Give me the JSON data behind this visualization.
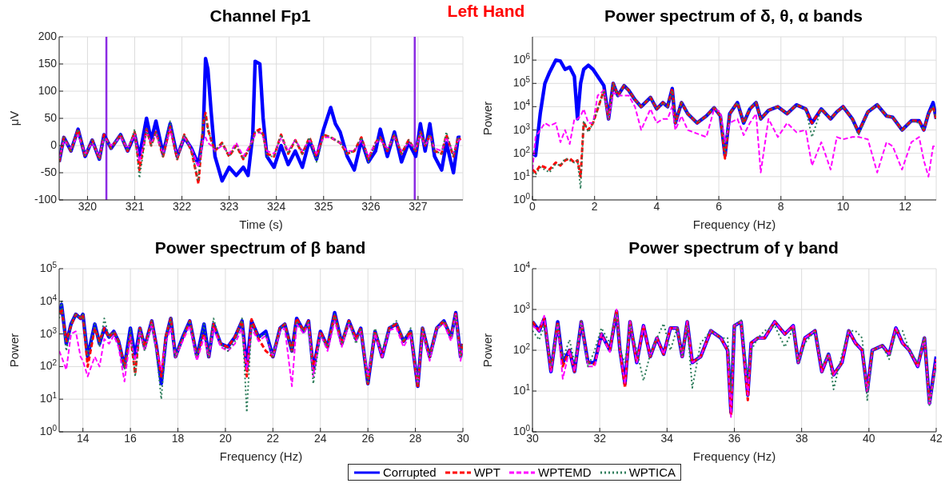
{
  "chart_data": [
    {
      "type": "line",
      "title": "Channel Fp1",
      "xlabel": "Time (s)",
      "ylabel": "μV",
      "annotations": [
        "Left Hand"
      ],
      "grid": true,
      "marker": "none",
      "xlim": [
        319.4,
        327.95
      ],
      "xticks": [
        320,
        321,
        322,
        323,
        324,
        325,
        326,
        327
      ],
      "ylim": [
        -100,
        200
      ],
      "yticks": [
        -100,
        -50,
        0,
        50,
        100,
        150,
        200
      ],
      "ref_lines": [
        {
          "axis": "x",
          "value": 320.4,
          "color": "#8b2be2"
        },
        {
          "axis": "x",
          "value": 326.93,
          "color": "#8b2be2"
        }
      ],
      "x": [
        319.4,
        319.5,
        319.65,
        319.8,
        319.95,
        320.1,
        320.25,
        320.35,
        320.5,
        320.7,
        320.85,
        321.0,
        321.1,
        321.25,
        321.35,
        321.45,
        321.6,
        321.75,
        321.9,
        322.05,
        322.2,
        322.35,
        322.45,
        322.5,
        322.55,
        322.62,
        322.7,
        322.85,
        323.0,
        323.15,
        323.3,
        323.4,
        323.5,
        323.55,
        323.65,
        323.72,
        323.8,
        323.95,
        324.1,
        324.25,
        324.4,
        324.55,
        324.7,
        324.85,
        325.0,
        325.15,
        325.25,
        325.35,
        325.5,
        325.65,
        325.8,
        325.95,
        326.1,
        326.2,
        326.35,
        326.5,
        326.65,
        326.8,
        326.95,
        327.05,
        327.15,
        327.25,
        327.35,
        327.5,
        327.6,
        327.75,
        327.85,
        327.9
      ],
      "series": [
        {
          "color": "#0000ff",
          "line_style": "solid",
          "values": [
            -30,
            15,
            -10,
            30,
            -20,
            10,
            -25,
            20,
            -5,
            20,
            -10,
            20,
            -20,
            50,
            10,
            45,
            -15,
            40,
            -20,
            15,
            -5,
            -35,
            20,
            160,
            140,
            60,
            -20,
            -65,
            -40,
            -55,
            -40,
            -55,
            20,
            155,
            150,
            50,
            -20,
            -40,
            0,
            -35,
            -10,
            -40,
            10,
            -25,
            30,
            70,
            40,
            25,
            -20,
            -45,
            10,
            -30,
            -10,
            30,
            -20,
            25,
            -30,
            5,
            -20,
            40,
            -10,
            40,
            -20,
            -45,
            5,
            -50,
            15,
            15
          ]
        },
        {
          "color": "#ff0000",
          "line_style": "dashed",
          "values": [
            -30,
            15,
            -10,
            30,
            -20,
            10,
            -25,
            20,
            -5,
            20,
            -10,
            25,
            -45,
            30,
            0,
            25,
            -20,
            35,
            -25,
            20,
            -10,
            -70,
            40,
            60,
            30,
            10,
            -10,
            5,
            -20,
            0,
            -25,
            -10,
            10,
            25,
            30,
            20,
            -15,
            -20,
            20,
            -15,
            10,
            -15,
            15,
            -20,
            20,
            15,
            10,
            5,
            -15,
            -10,
            15,
            -25,
            5,
            15,
            -10,
            20,
            -15,
            10,
            -10,
            25,
            0,
            20,
            -10,
            -15,
            20,
            -20,
            15,
            10
          ]
        },
        {
          "color": "#ff00ff",
          "line_style": "dashed",
          "values": [
            -25,
            10,
            -5,
            20,
            -15,
            5,
            -20,
            15,
            0,
            15,
            -5,
            20,
            -30,
            25,
            5,
            20,
            -15,
            30,
            -20,
            15,
            -5,
            -40,
            10,
            15,
            5,
            0,
            -10,
            0,
            -15,
            5,
            -20,
            -5,
            10,
            20,
            25,
            15,
            -10,
            -15,
            15,
            -10,
            10,
            -10,
            10,
            -15,
            15,
            15,
            10,
            5,
            -10,
            -10,
            10,
            -20,
            5,
            10,
            -5,
            15,
            -10,
            5,
            -5,
            20,
            0,
            15,
            -5,
            -10,
            15,
            -15,
            10,
            10
          ]
        },
        {
          "color": "#2e7d5b",
          "line_style": "dotted",
          "values": [
            -30,
            15,
            -10,
            30,
            -20,
            10,
            -25,
            15,
            -5,
            20,
            -10,
            30,
            -60,
            30,
            0,
            25,
            -20,
            45,
            -25,
            20,
            -10,
            -65,
            45,
            55,
            30,
            10,
            -10,
            5,
            -20,
            0,
            -25,
            -10,
            10,
            25,
            25,
            20,
            -20,
            -20,
            20,
            -15,
            10,
            -15,
            15,
            -30,
            20,
            15,
            10,
            5,
            -15,
            -10,
            15,
            -30,
            5,
            15,
            -10,
            20,
            -15,
            10,
            -10,
            25,
            0,
            20,
            -10,
            -15,
            25,
            -20,
            15,
            10
          ]
        }
      ]
    },
    {
      "type": "line",
      "title": "Power spectrum of δ, θ, α bands",
      "xlabel": "Frequency (Hz)",
      "ylabel": "Power",
      "log": "y",
      "grid": true,
      "marker": "none",
      "xlim": [
        0,
        13
      ],
      "xticks": [
        0,
        2,
        4,
        6,
        8,
        10,
        12
      ],
      "ylim": [
        1,
        10000000
      ],
      "yticks": [
        {
          "value": 1,
          "label": "10$^{0}$"
        },
        {
          "value": 10,
          "label": "10$^{1}$"
        },
        {
          "value": 100,
          "label": "10$^{2}$"
        },
        {
          "value": 1000,
          "label": "10$^{3}$"
        },
        {
          "value": 10000,
          "label": "10$^{4}$"
        },
        {
          "value": 100000,
          "label": "10$^{5}$"
        },
        {
          "value": 1000000,
          "label": "10$^{6}$"
        }
      ],
      "x": [
        0,
        0.1,
        0.25,
        0.4,
        0.55,
        0.75,
        0.9,
        1.05,
        1.2,
        1.35,
        1.45,
        1.55,
        1.65,
        1.8,
        1.95,
        2.1,
        2.3,
        2.45,
        2.6,
        2.75,
        2.95,
        3.1,
        3.3,
        3.5,
        3.8,
        4.0,
        4.2,
        4.35,
        4.5,
        4.6,
        4.8,
        5.0,
        5.3,
        5.6,
        5.85,
        6.05,
        6.2,
        6.35,
        6.6,
        6.8,
        7.0,
        7.2,
        7.35,
        7.6,
        7.9,
        8.2,
        8.5,
        8.8,
        9.0,
        9.3,
        9.6,
        9.8,
        10.0,
        10.3,
        10.5,
        10.8,
        11.1,
        11.4,
        11.6,
        11.9,
        12.2,
        12.45,
        12.6,
        12.75,
        12.9,
        13.0
      ],
      "series": [
        {
          "color": "#0000ff",
          "line_style": "solid",
          "values": [
            100,
            80,
            5000,
            100000,
            300000,
            1000000,
            900000,
            400000,
            500000,
            200000,
            3000,
            100000,
            400000,
            600000,
            400000,
            200000,
            80000,
            3000,
            100000,
            30000,
            80000,
            50000,
            20000,
            10000,
            25000,
            8000,
            15000,
            10000,
            60000,
            2000,
            15000,
            5000,
            2000,
            4000,
            9000,
            4000,
            80,
            5000,
            15000,
            2000,
            8000,
            15000,
            3000,
            7000,
            10000,
            5000,
            12000,
            8000,
            2000,
            8000,
            3000,
            6000,
            10000,
            3000,
            800,
            6000,
            12000,
            4000,
            3500,
            1000,
            2500,
            2500,
            1000,
            5000,
            15000,
            3000
          ]
        },
        {
          "color": "#ff0000",
          "line_style": "dashed",
          "values": [
            20,
            15,
            30,
            25,
            20,
            40,
            30,
            50,
            60,
            40,
            50,
            10,
            2000,
            1000,
            2000,
            8000,
            50000,
            3000,
            100000,
            30000,
            80000,
            50000,
            20000,
            10000,
            25000,
            8000,
            15000,
            10000,
            60000,
            2000,
            15000,
            5000,
            2000,
            4000,
            9000,
            4000,
            60,
            5000,
            15000,
            2000,
            8000,
            15000,
            3000,
            7000,
            10000,
            5000,
            12000,
            8000,
            2000,
            8000,
            3000,
            6000,
            10000,
            3000,
            800,
            6000,
            12000,
            4000,
            3500,
            1000,
            2500,
            2500,
            1000,
            5000,
            10000,
            3000
          ]
        },
        {
          "color": "#ff00ff",
          "line_style": "dashed",
          "values": [
            20,
            500,
            1000,
            2000,
            1500,
            2000,
            300,
            1000,
            250,
            3000,
            3000,
            4000,
            8000,
            2000,
            2000,
            30000,
            50000,
            3000,
            40000,
            30000,
            30000,
            30000,
            10000,
            1000,
            8000,
            2000,
            3000,
            3000,
            10000,
            1000,
            4000,
            1000,
            700,
            500,
            8000,
            6000,
            300,
            2000,
            3000,
            600,
            2000,
            5000,
            15,
            3000,
            500,
            2000,
            800,
            1000,
            30,
            300,
            20,
            500,
            400,
            500,
            500,
            400,
            15,
            300,
            200,
            20,
            300,
            500,
            50,
            10,
            200,
            200
          ]
        },
        {
          "color": "#2e7d5b",
          "line_style": "dotted",
          "values": [
            15,
            12,
            25,
            20,
            15,
            35,
            30,
            60,
            50,
            40,
            50,
            3,
            2500,
            800,
            2000,
            8000,
            50000,
            3000,
            100000,
            30000,
            80000,
            50000,
            20000,
            10000,
            25000,
            8000,
            15000,
            10000,
            50000,
            2000,
            15000,
            5000,
            2000,
            4000,
            9000,
            4000,
            100,
            5000,
            15000,
            2000,
            9000,
            15000,
            3000,
            7000,
            10000,
            5000,
            12000,
            8000,
            500,
            8000,
            3000,
            6000,
            10000,
            3000,
            600,
            6000,
            12000,
            4000,
            3500,
            1000,
            2500,
            2000,
            1000,
            5000,
            10000,
            3000
          ]
        }
      ]
    },
    {
      "type": "line",
      "title": "Power spectrum of β band",
      "xlabel": "Frequency (Hz)",
      "ylabel": "Power",
      "log": "y",
      "grid": true,
      "marker": "none",
      "xlim": [
        13,
        30
      ],
      "xticks": [
        14,
        16,
        18,
        20,
        22,
        24,
        26,
        28,
        30
      ],
      "ylim": [
        1,
        100000
      ],
      "yticks": [
        {
          "value": 1,
          "label": "10$^{0}$"
        },
        {
          "value": 10,
          "label": "10$^{1}$"
        },
        {
          "value": 100,
          "label": "10$^{2}$"
        },
        {
          "value": 1000,
          "label": "10$^{3}$"
        },
        {
          "value": 10000,
          "label": "10$^{4}$"
        },
        {
          "value": 100000,
          "label": "10$^{5}$"
        }
      ],
      "x": [
        13.0,
        13.1,
        13.3,
        13.5,
        13.7,
        13.9,
        14.0,
        14.2,
        14.5,
        14.7,
        14.9,
        15.1,
        15.3,
        15.5,
        15.75,
        16.0,
        16.2,
        16.4,
        16.6,
        16.9,
        17.1,
        17.3,
        17.5,
        17.7,
        17.9,
        18.2,
        18.5,
        18.8,
        19.1,
        19.3,
        19.5,
        19.8,
        20.1,
        20.4,
        20.7,
        20.9,
        21.1,
        21.4,
        21.7,
        22.0,
        22.3,
        22.5,
        22.8,
        23.0,
        23.3,
        23.5,
        23.7,
        24.0,
        24.3,
        24.6,
        24.9,
        25.2,
        25.5,
        25.7,
        26.0,
        26.3,
        26.6,
        26.9,
        27.2,
        27.5,
        27.8,
        28.1,
        28.3,
        28.6,
        28.9,
        29.2,
        29.5,
        29.7,
        29.9,
        30.0
      ],
      "series": [
        {
          "color": "#0000ff",
          "line_style": "solid",
          "values": [
            4000,
            8000,
            500,
            2000,
            4000,
            3000,
            4000,
            200,
            2000,
            500,
            1500,
            800,
            1200,
            600,
            100,
            1500,
            200,
            1500,
            400,
            2500,
            400,
            30,
            800,
            3000,
            200,
            800,
            2500,
            200,
            2000,
            200,
            2000,
            500,
            400,
            800,
            2500,
            100,
            2500,
            800,
            1200,
            200,
            1500,
            2000,
            300,
            3000,
            1200,
            2500,
            80,
            1200,
            400,
            4500,
            500,
            2500,
            700,
            1500,
            30,
            1200,
            200,
            1500,
            2000,
            600,
            1200,
            25,
            1500,
            200,
            1500,
            2500,
            800,
            4500,
            200,
            500
          ]
        },
        {
          "color": "#ff0000",
          "line_style": "dashed",
          "values": [
            4000,
            6000,
            600,
            1800,
            4000,
            3000,
            4000,
            100,
            1500,
            600,
            1500,
            800,
            1200,
            600,
            100,
            900,
            60,
            1500,
            400,
            2500,
            400,
            50,
            900,
            3000,
            200,
            700,
            2500,
            200,
            1000,
            200,
            2000,
            500,
            400,
            800,
            2500,
            50,
            2800,
            700,
            300,
            200,
            1500,
            2000,
            300,
            3000,
            1200,
            2500,
            80,
            1200,
            400,
            4000,
            500,
            2500,
            700,
            1500,
            30,
            1200,
            200,
            1500,
            2000,
            600,
            1200,
            22,
            1500,
            200,
            1500,
            2500,
            800,
            4500,
            200,
            500
          ]
        },
        {
          "color": "#ff00ff",
          "line_style": "dashed",
          "values": [
            300,
            200,
            80,
            1000,
            1200,
            200,
            150,
            50,
            200,
            100,
            700,
            500,
            900,
            400,
            35,
            800,
            150,
            1200,
            300,
            2000,
            300,
            80,
            600,
            1500,
            200,
            600,
            1800,
            150,
            800,
            200,
            1500,
            400,
            300,
            500,
            1500,
            80,
            1500,
            600,
            900,
            200,
            1200,
            1500,
            25,
            2000,
            1000,
            2000,
            50,
            1000,
            300,
            2500,
            400,
            2000,
            600,
            1200,
            50,
            1000,
            200,
            1300,
            1500,
            400,
            1000,
            30,
            1200,
            150,
            1500,
            2000,
            600,
            4000,
            150,
            400
          ]
        },
        {
          "color": "#2e7d5b",
          "line_style": "dotted",
          "values": [
            3000,
            10000,
            300,
            2000,
            4000,
            3000,
            4000,
            200,
            2000,
            400,
            3000,
            800,
            1200,
            600,
            80,
            1500,
            50,
            1500,
            300,
            2500,
            300,
            10,
            800,
            3000,
            200,
            800,
            2500,
            200,
            2000,
            200,
            3000,
            500,
            300,
            600,
            3000,
            4,
            2000,
            800,
            1000,
            200,
            1500,
            2000,
            300,
            2500,
            1200,
            2500,
            30,
            1000,
            400,
            4000,
            500,
            2500,
            500,
            1500,
            30,
            1500,
            300,
            1500,
            2500,
            600,
            1500,
            30,
            1500,
            200,
            1500,
            2500,
            800,
            4000,
            200,
            500
          ]
        }
      ]
    },
    {
      "type": "line",
      "title": "Power spectrum of γ band",
      "xlabel": "Frequency (Hz)",
      "ylabel": "Power",
      "log": "y",
      "grid": true,
      "marker": "none",
      "legend": "bottom left",
      "xlim": [
        30,
        42
      ],
      "xticks": [
        30,
        32,
        34,
        36,
        38,
        40,
        42
      ],
      "ylim": [
        1,
        10000
      ],
      "yticks": [
        {
          "value": 1,
          "label": "10$^{0}$"
        },
        {
          "value": 10,
          "label": "10$^{1}$"
        },
        {
          "value": 100,
          "label": "10$^{2}$"
        },
        {
          "value": 1000,
          "label": "10$^{3}$"
        },
        {
          "value": 10000,
          "label": "10$^{4}$"
        }
      ],
      "x": [
        30.0,
        30.2,
        30.35,
        30.55,
        30.75,
        30.9,
        31.1,
        31.25,
        31.45,
        31.65,
        31.85,
        32.05,
        32.3,
        32.5,
        32.6,
        32.75,
        32.9,
        33.1,
        33.3,
        33.5,
        33.7,
        33.9,
        34.1,
        34.3,
        34.45,
        34.6,
        34.75,
        35.0,
        35.3,
        35.6,
        35.8,
        35.9,
        36.0,
        36.2,
        36.4,
        36.5,
        36.7,
        36.9,
        37.2,
        37.5,
        37.75,
        37.9,
        38.1,
        38.4,
        38.6,
        38.8,
        38.95,
        39.2,
        39.4,
        39.6,
        39.8,
        39.95,
        40.1,
        40.4,
        40.6,
        40.8,
        41.0,
        41.2,
        41.45,
        41.65,
        41.8,
        42.0
      ],
      "series": [
        {
          "name": "Corrupted",
          "color": "#0000ff",
          "line_style": "solid",
          "values": [
            500,
            300,
            600,
            30,
            500,
            50,
            100,
            30,
            500,
            50,
            50,
            250,
            100,
            900,
            100,
            15,
            500,
            50,
            400,
            70,
            200,
            80,
            350,
            350,
            70,
            500,
            50,
            70,
            300,
            200,
            100,
            3,
            400,
            500,
            8,
            150,
            200,
            200,
            500,
            250,
            400,
            50,
            200,
            300,
            30,
            80,
            25,
            50,
            300,
            150,
            100,
            10,
            100,
            130,
            80,
            350,
            150,
            100,
            40,
            200,
            5,
            70
          ]
        },
        {
          "name": "WPT",
          "color": "#ff0000",
          "line_style": "dashed",
          "values": [
            500,
            300,
            600,
            30,
            500,
            40,
            100,
            30,
            500,
            50,
            45,
            250,
            100,
            1000,
            100,
            12,
            500,
            50,
            400,
            70,
            200,
            80,
            350,
            350,
            70,
            500,
            50,
            70,
            300,
            200,
            100,
            2.5,
            400,
            500,
            6,
            150,
            200,
            200,
            500,
            250,
            400,
            50,
            200,
            300,
            30,
            80,
            25,
            50,
            300,
            150,
            100,
            10,
            100,
            130,
            80,
            350,
            150,
            100,
            40,
            200,
            5,
            60
          ]
        },
        {
          "name": "WPTEMD",
          "color": "#ff00ff",
          "line_style": "dashed",
          "values": [
            400,
            300,
            700,
            30,
            450,
            20,
            100,
            30,
            500,
            40,
            40,
            250,
            90,
            1000,
            100,
            15,
            500,
            50,
            400,
            70,
            200,
            80,
            350,
            350,
            70,
            500,
            50,
            70,
            300,
            200,
            100,
            2.3,
            400,
            500,
            8,
            150,
            200,
            200,
            500,
            250,
            400,
            50,
            200,
            300,
            30,
            80,
            25,
            50,
            300,
            150,
            100,
            10,
            100,
            130,
            80,
            350,
            150,
            100,
            40,
            200,
            4.5,
            60
          ]
        },
        {
          "name": "WPTICA",
          "color": "#2e7d5b",
          "line_style": "dotted",
          "values": [
            300,
            180,
            400,
            40,
            450,
            60,
            180,
            50,
            500,
            40,
            100,
            350,
            150,
            800,
            100,
            50,
            400,
            100,
            18,
            80,
            200,
            450,
            100,
            350,
            70,
            400,
            12,
            150,
            300,
            200,
            200,
            10,
            400,
            550,
            20,
            100,
            200,
            300,
            400,
            120,
            350,
            50,
            150,
            300,
            40,
            80,
            11,
            80,
            300,
            300,
            200,
            6,
            100,
            130,
            60,
            300,
            300,
            100,
            50,
            200,
            4.5,
            50
          ]
        }
      ]
    }
  ]
}
